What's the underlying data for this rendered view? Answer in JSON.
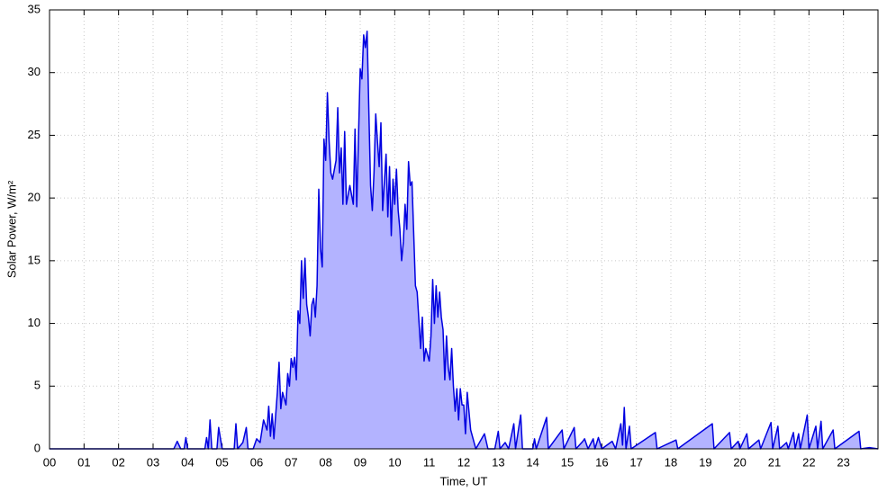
{
  "chart_data": {
    "type": "area",
    "xlabel": "Time, UT",
    "ylabel": "Solar Power, W/m²",
    "color": "#0000e0",
    "fill": "#b3b3ff",
    "grid": true,
    "xlim": [
      0,
      24
    ],
    "ylim": [
      0,
      35
    ],
    "yticks": [
      0,
      5,
      10,
      15,
      20,
      25,
      30,
      35
    ],
    "xticks": [
      {
        "value": 0,
        "label": "00"
      },
      {
        "value": 1,
        "label": "01"
      },
      {
        "value": 2,
        "label": "02"
      },
      {
        "value": 3,
        "label": "03"
      },
      {
        "value": 4,
        "label": "04"
      },
      {
        "value": 5,
        "label": "05"
      },
      {
        "value": 6,
        "label": "06"
      },
      {
        "value": 7,
        "label": "07"
      },
      {
        "value": 8,
        "label": "08"
      },
      {
        "value": 9,
        "label": "09"
      },
      10,
      11,
      12,
      13,
      14,
      15,
      16,
      17,
      18,
      19,
      20,
      21,
      22,
      23
    ],
    "x": [
      0,
      3.6,
      3.7,
      3.8,
      3.9,
      3.95,
      4.0,
      4.5,
      4.55,
      4.6,
      4.65,
      4.7,
      4.85,
      4.9,
      5.0,
      5.35,
      5.4,
      5.45,
      5.6,
      5.7,
      5.75,
      5.9,
      6.0,
      6.1,
      6.2,
      6.3,
      6.35,
      6.4,
      6.45,
      6.5,
      6.6,
      6.65,
      6.7,
      6.75,
      6.85,
      6.9,
      6.95,
      7.0,
      7.05,
      7.1,
      7.15,
      7.2,
      7.25,
      7.3,
      7.35,
      7.4,
      7.45,
      7.5,
      7.55,
      7.6,
      7.65,
      7.7,
      7.75,
      7.8,
      7.85,
      7.9,
      7.95,
      8.0,
      8.05,
      8.1,
      8.15,
      8.2,
      8.3,
      8.35,
      8.4,
      8.45,
      8.5,
      8.55,
      8.6,
      8.7,
      8.8,
      8.85,
      8.9,
      9.0,
      9.05,
      9.1,
      9.15,
      9.2,
      9.25,
      9.3,
      9.35,
      9.4,
      9.45,
      9.5,
      9.55,
      9.6,
      9.65,
      9.75,
      9.8,
      9.85,
      9.9,
      9.95,
      10.0,
      10.05,
      10.1,
      10.15,
      10.2,
      10.25,
      10.3,
      10.35,
      10.4,
      10.45,
      10.5,
      10.6,
      10.65,
      10.75,
      10.8,
      10.85,
      10.9,
      11.0,
      11.05,
      11.1,
      11.15,
      11.2,
      11.25,
      11.3,
      11.35,
      11.4,
      11.45,
      11.5,
      11.55,
      11.6,
      11.65,
      11.7,
      11.75,
      11.8,
      11.85,
      11.9,
      11.95,
      12.0,
      12.05,
      12.1,
      12.15,
      12.2,
      12.3,
      12.35,
      12.6,
      12.7,
      12.9,
      13.0,
      13.05,
      13.2,
      13.3,
      13.45,
      13.5,
      13.65,
      13.7,
      14.0,
      14.05,
      14.1,
      14.4,
      14.45,
      14.85,
      14.9,
      15.2,
      15.25,
      15.45,
      15.5,
      15.6,
      15.75,
      15.8,
      15.9,
      16.0,
      16.3,
      16.4,
      16.55,
      16.6,
      16.65,
      16.7,
      16.8,
      16.85,
      17.55,
      17.6,
      18.15,
      18.2,
      19.2,
      19.25,
      19.7,
      19.75,
      19.95,
      20.0,
      20.2,
      20.25,
      20.55,
      20.6,
      20.9,
      20.95,
      21.1,
      21.15,
      21.35,
      21.4,
      21.55,
      21.6,
      21.7,
      21.75,
      21.95,
      22.0,
      22.2,
      22.25,
      22.35,
      22.4,
      22.7,
      22.75,
      23.45,
      23.5,
      23.75,
      24.0
    ],
    "values": [
      0,
      0,
      0.6,
      0,
      0,
      0.9,
      0,
      0,
      0.9,
      0,
      2.3,
      0,
      0,
      1.7,
      0,
      0,
      2.0,
      0,
      0.5,
      1.7,
      0,
      0,
      0.8,
      0.5,
      2.3,
      1.5,
      3.4,
      1.0,
      2.8,
      0.8,
      4.5,
      6.9,
      3.2,
      4.5,
      3.5,
      6.0,
      5.0,
      7.2,
      6.5,
      7.3,
      5.5,
      11.0,
      10.0,
      15.0,
      12.0,
      15.2,
      11.5,
      10.5,
      9.0,
      11.5,
      12.0,
      10.5,
      13.0,
      20.7,
      16.0,
      14.5,
      24.7,
      23.0,
      28.4,
      24.5,
      22.0,
      21.5,
      23.0,
      27.2,
      22.0,
      24.0,
      19.5,
      25.3,
      19.5,
      21.0,
      19.5,
      25.5,
      19.3,
      30.3,
      29.5,
      33.0,
      32.0,
      33.3,
      27.0,
      21.0,
      19.0,
      22.0,
      26.7,
      24.5,
      22.5,
      26.0,
      19.0,
      23.5,
      18.5,
      22.5,
      17.0,
      21.5,
      19.5,
      22.3,
      19.0,
      17.5,
      15.0,
      16.5,
      19.5,
      17.5,
      22.9,
      21.0,
      21.3,
      13.0,
      12.5,
      8.0,
      10.5,
      7.0,
      8.0,
      7.0,
      9.0,
      13.5,
      10.0,
      13.0,
      10.5,
      12.5,
      10.5,
      9.5,
      5.5,
      9.0,
      6.5,
      5.5,
      8.0,
      5.0,
      3.0,
      4.8,
      2.3,
      4.8,
      3.5,
      3.5,
      1.2,
      4.5,
      3.0,
      1.5,
      0.5,
      0,
      1.2,
      0,
      0,
      1.4,
      0,
      0.5,
      0,
      2.0,
      0,
      2.7,
      0,
      0,
      0.8,
      0,
      2.5,
      0,
      1.5,
      0,
      1.7,
      0,
      0.6,
      0.8,
      0,
      0.8,
      0,
      0.9,
      0,
      0.6,
      0,
      2.0,
      0.3,
      3.3,
      0,
      1.8,
      0,
      1.3,
      0,
      0.7,
      0,
      2.0,
      0,
      1.3,
      0,
      0.6,
      0,
      1.2,
      0,
      0.7,
      0,
      2.1,
      0,
      1.8,
      0,
      0.5,
      0,
      1.3,
      0,
      1.2,
      0,
      2.7,
      0,
      1.8,
      0,
      2.2,
      0,
      1.5,
      0,
      1.4,
      0,
      0.1,
      0
    ]
  }
}
